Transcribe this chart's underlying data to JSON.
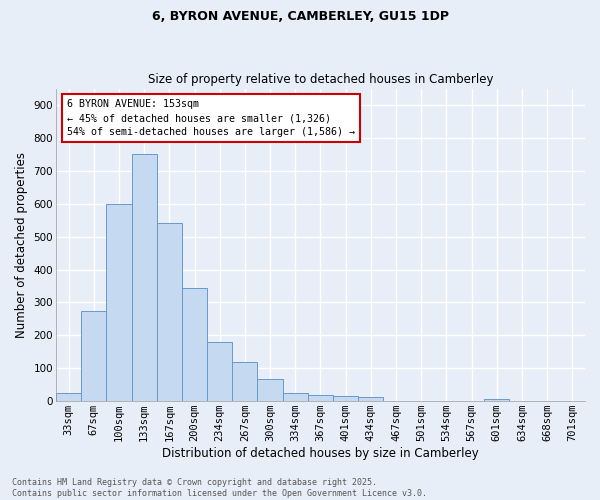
{
  "title1": "6, BYRON AVENUE, CAMBERLEY, GU15 1DP",
  "title2": "Size of property relative to detached houses in Camberley",
  "xlabel": "Distribution of detached houses by size in Camberley",
  "ylabel": "Number of detached properties",
  "categories": [
    "33sqm",
    "67sqm",
    "100sqm",
    "133sqm",
    "167sqm",
    "200sqm",
    "234sqm",
    "267sqm",
    "300sqm",
    "334sqm",
    "367sqm",
    "401sqm",
    "434sqm",
    "467sqm",
    "501sqm",
    "534sqm",
    "567sqm",
    "601sqm",
    "634sqm",
    "668sqm",
    "701sqm"
  ],
  "values": [
    25,
    275,
    600,
    750,
    540,
    345,
    180,
    118,
    68,
    25,
    18,
    15,
    12,
    0,
    0,
    0,
    0,
    8,
    0,
    0,
    0
  ],
  "bar_color": "#c5d9f0",
  "bar_edge_color": "#6699cc",
  "annotation_text": "6 BYRON AVENUE: 153sqm\n← 45% of detached houses are smaller (1,326)\n54% of semi-detached houses are larger (1,586) →",
  "annotation_box_color": "#ffffff",
  "annotation_box_edge": "#cc0000",
  "bg_color": "#e8eef8",
  "grid_color": "#ffffff",
  "footer_text": "Contains HM Land Registry data © Crown copyright and database right 2025.\nContains public sector information licensed under the Open Government Licence v3.0.",
  "ylim": [
    0,
    950
  ],
  "yticks": [
    0,
    100,
    200,
    300,
    400,
    500,
    600,
    700,
    800,
    900
  ],
  "title1_fontsize": 9,
  "title2_fontsize": 8.5,
  "xlabel_fontsize": 8.5,
  "ylabel_fontsize": 8.5,
  "tick_fontsize": 7.5,
  "footer_fontsize": 6.0
}
